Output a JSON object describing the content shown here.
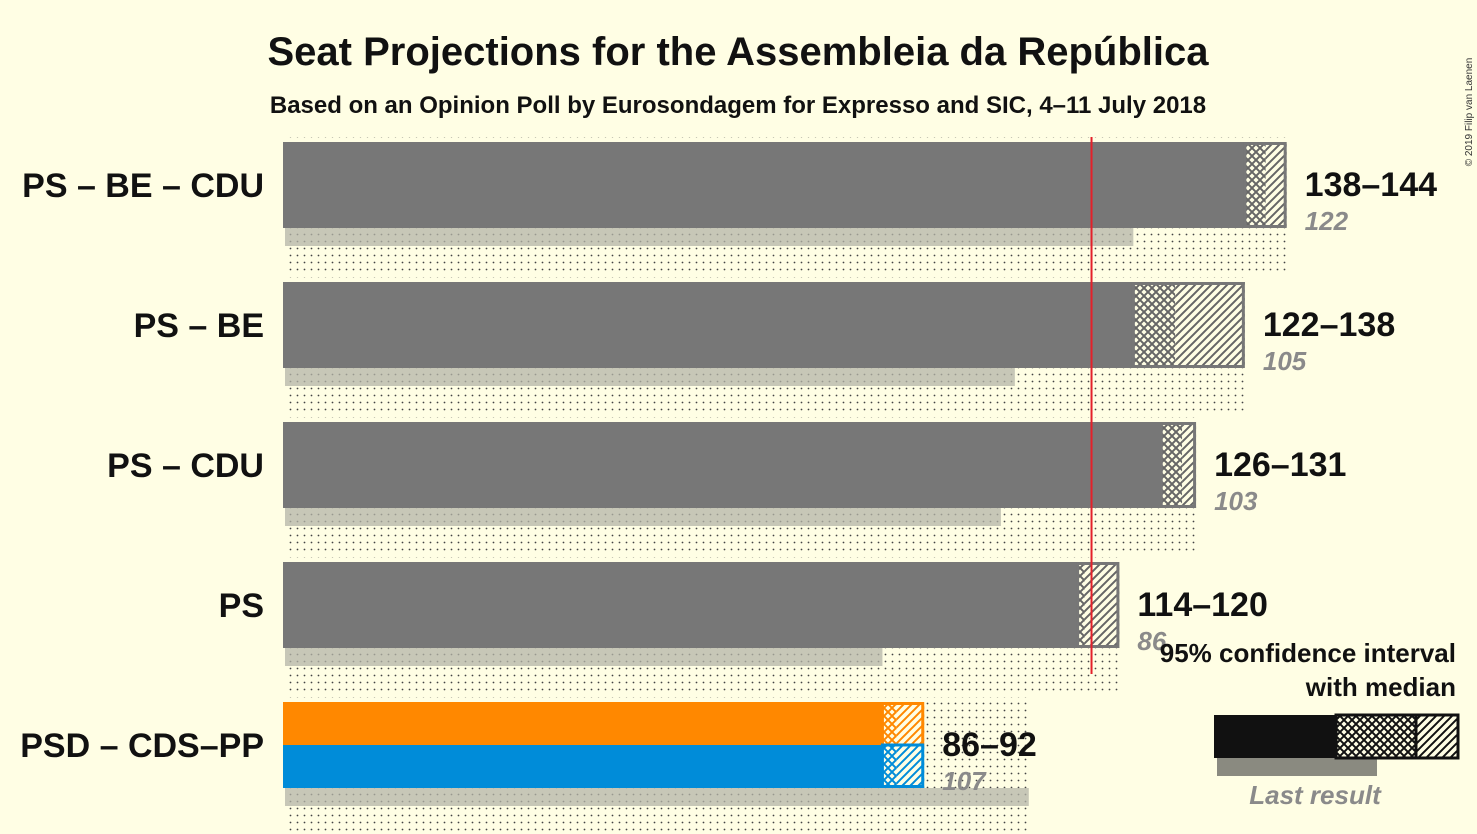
{
  "chart_data": {
    "type": "bar",
    "title": "Seat Projections for the Assembleia da República",
    "subtitle": "Based on an Opinion Poll by Eurosondagem for Expresso and SIC, 4–11 July 2018",
    "copyright": "© 2019 Filip van Laenen",
    "majority_line": 116,
    "categories": [
      "PS – BE – CDU",
      "PS – BE",
      "PS – CDU",
      "PS",
      "PSD – CDS–PP"
    ],
    "series": [
      {
        "low": 138,
        "median": 141,
        "high": 144,
        "range_label": "138–144",
        "last_result": 122,
        "last_label": "122",
        "colors": [
          "#777777"
        ]
      },
      {
        "low": 122,
        "median": 128,
        "high": 138,
        "range_label": "122–138",
        "last_result": 105,
        "last_label": "105",
        "colors": [
          "#777777"
        ]
      },
      {
        "low": 126,
        "median": 129,
        "high": 131,
        "range_label": "126–131",
        "last_result": 103,
        "last_label": "103",
        "colors": [
          "#777777"
        ]
      },
      {
        "low": 114,
        "median": 115,
        "high": 120,
        "range_label": "114–120",
        "last_result": 86,
        "last_label": "86",
        "colors": [
          "#777777"
        ]
      },
      {
        "low": 86,
        "median": 88,
        "high": 92,
        "range_label": "86–92",
        "last_result": 107,
        "last_label": "107",
        "colors": [
          "#FF8800",
          "#008CD9"
        ]
      }
    ],
    "legend": {
      "line1": "95% confidence interval",
      "line2": "with median",
      "last": "Last result"
    },
    "accent": {
      "majority": "#E4202A",
      "bar": "#777777",
      "last": "#B4B4A8",
      "background": "#FFFEE4"
    }
  }
}
